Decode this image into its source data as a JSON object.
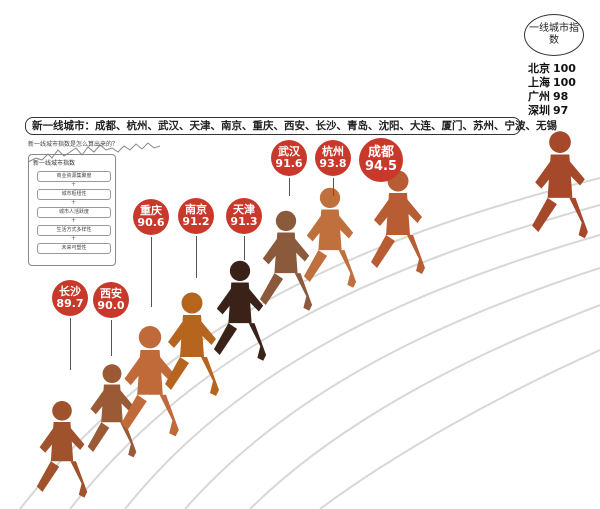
{
  "colors": {
    "bubble": "#c8392b",
    "runner_skin": "#9a5a36",
    "runner_shirt_orange": "#c06a3a",
    "runner_dark": "#3a2218",
    "track_line": "#d7d7d7"
  },
  "tier1": {
    "title": "一线城市指数",
    "cities": [
      {
        "name": "北京",
        "score": "100"
      },
      {
        "name": "上海",
        "score": "100"
      },
      {
        "name": "广州",
        "score": "98"
      },
      {
        "name": "深圳",
        "score": "97"
      }
    ]
  },
  "banner": {
    "title": "新一线城市：",
    "cities": "成都、杭州、武汉、天津、南京、重庆、西安、长沙、青岛、沈阳、大连、厦门、苏州、宁波、无锡"
  },
  "mini_caption": "新一线城市指数是怎么算出来的？",
  "flow": {
    "head": "新一线城市指数",
    "items": [
      "商业资源集聚度",
      "城市枢纽性",
      "城市人活跃度",
      "生活方式多样性",
      "未来可塑性"
    ]
  },
  "city_scores": [
    {
      "name": "长沙",
      "score": "89.7"
    },
    {
      "name": "西安",
      "score": "90.0"
    },
    {
      "name": "重庆",
      "score": "90.6"
    },
    {
      "name": "南京",
      "score": "91.2"
    },
    {
      "name": "天津",
      "score": "91.3"
    },
    {
      "name": "武汉",
      "score": "91.6"
    },
    {
      "name": "杭州",
      "score": "93.8"
    },
    {
      "name": "成都",
      "score": "94.5"
    }
  ],
  "runner_icons": [
    "runner-icon"
  ]
}
